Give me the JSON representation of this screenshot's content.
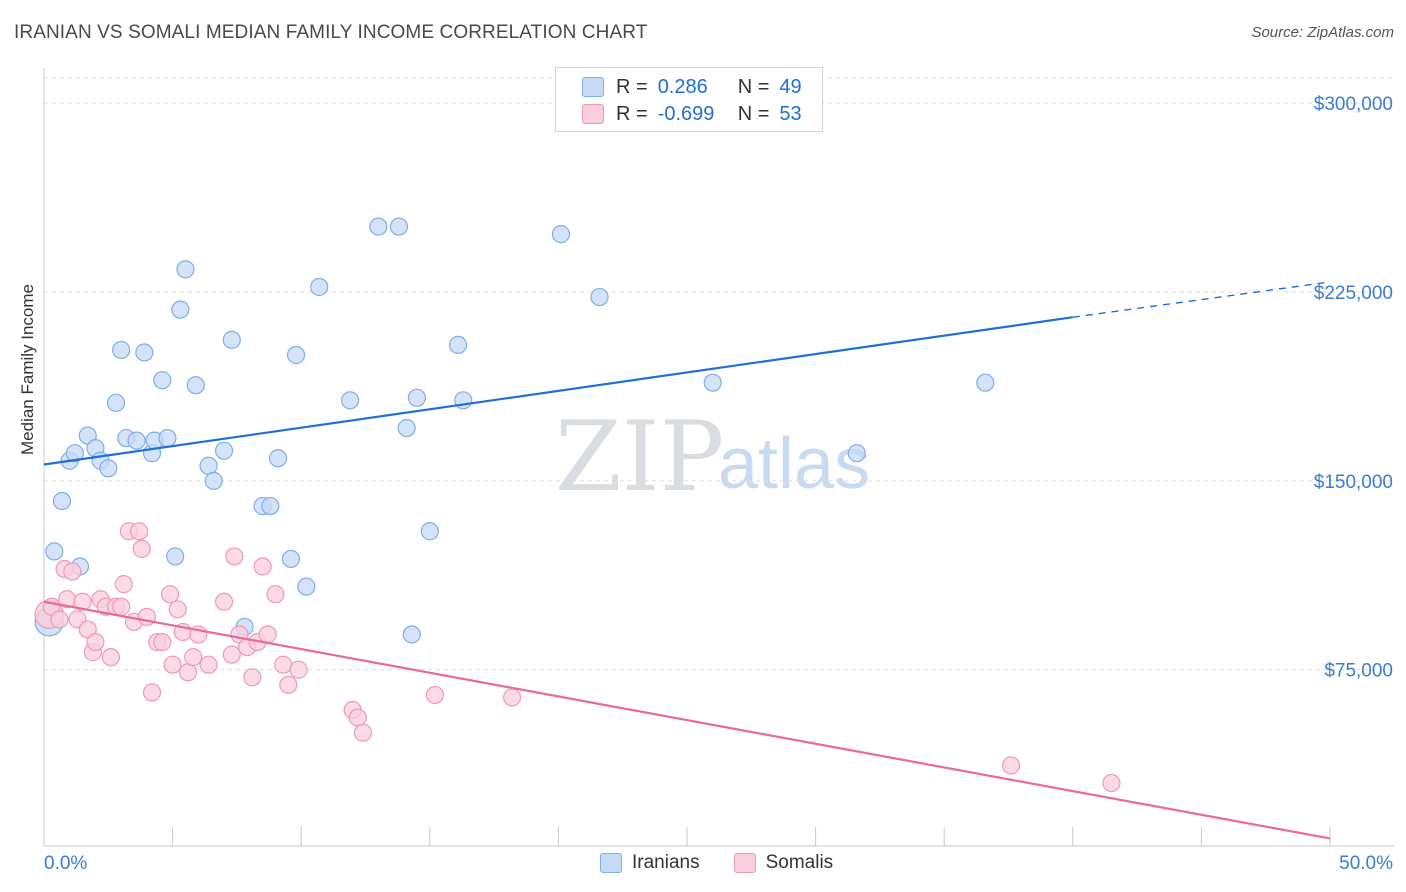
{
  "title": "IRANIAN VS SOMALI MEDIAN FAMILY INCOME CORRELATION CHART",
  "source": "Source: ZipAtlas.com",
  "watermark": {
    "zip": "ZIP",
    "atlas": "atlas"
  },
  "colors": {
    "blue_fill": "#c5daf6",
    "blue_stroke": "#7eaee8",
    "blue_line": "#1f6fd6",
    "pink_fill": "#f9cddc",
    "pink_stroke": "#ee9ab7",
    "pink_line": "#e8699a",
    "axis_text": "#3b7bd0"
  },
  "legend": {
    "rows": [
      {
        "r_label": "R =",
        "r_value": "0.286",
        "n_label": "N =",
        "n_value": "49"
      },
      {
        "r_label": "R =",
        "r_value": "-0.699",
        "n_label": "N =",
        "n_value": "53"
      }
    ]
  },
  "bottom_legend": {
    "iranians": "Iranians",
    "somalis": "Somalis"
  },
  "chart_data": {
    "type": "scatter",
    "ylabel": "Median Family Income",
    "xlabel": "",
    "xlim": [
      0,
      50
    ],
    "ylim": [
      5000,
      310000
    ],
    "x_tick_labels": {
      "min": "0.0%",
      "max": "50.0%"
    },
    "y_ticks": [
      {
        "value": 75000,
        "label": "$75,000"
      },
      {
        "value": 150000,
        "label": "$150,000"
      },
      {
        "value": 225000,
        "label": "$225,000"
      },
      {
        "value": 300000,
        "label": "$300,000"
      }
    ],
    "series": [
      {
        "name": "Iranians",
        "r": 0.286,
        "n": 49,
        "trend": {
          "x0": 0,
          "y0": 156500,
          "x1": 40,
          "y1": 215000,
          "dash_to_x": 50,
          "dash_to_y": 229000
        },
        "points": [
          [
            0.2,
            94000
          ],
          [
            0.4,
            122000
          ],
          [
            0.7,
            142000
          ],
          [
            1.0,
            158000
          ],
          [
            1.2,
            161000
          ],
          [
            1.4,
            116000
          ],
          [
            1.7,
            168000
          ],
          [
            2.0,
            163000
          ],
          [
            2.2,
            158000
          ],
          [
            2.5,
            155000
          ],
          [
            2.8,
            181000
          ],
          [
            3.0,
            202000
          ],
          [
            3.2,
            167000
          ],
          [
            3.6,
            166000
          ],
          [
            3.9,
            201000
          ],
          [
            4.2,
            161000
          ],
          [
            4.3,
            166000
          ],
          [
            4.6,
            190000
          ],
          [
            4.8,
            167000
          ],
          [
            5.1,
            120000
          ],
          [
            5.3,
            218000
          ],
          [
            5.5,
            234000
          ],
          [
            5.9,
            188000
          ],
          [
            6.4,
            156000
          ],
          [
            6.6,
            150000
          ],
          [
            7.0,
            162000
          ],
          [
            7.3,
            206000
          ],
          [
            7.8,
            92000
          ],
          [
            8.5,
            140000
          ],
          [
            8.8,
            140000
          ],
          [
            9.1,
            159000
          ],
          [
            9.6,
            119000
          ],
          [
            9.8,
            200000
          ],
          [
            10.2,
            108000
          ],
          [
            10.7,
            227000
          ],
          [
            11.9,
            182000
          ],
          [
            13.0,
            251000
          ],
          [
            13.8,
            251000
          ],
          [
            14.1,
            171000
          ],
          [
            14.3,
            89000
          ],
          [
            14.5,
            183000
          ],
          [
            15.0,
            130000
          ],
          [
            16.1,
            204000
          ],
          [
            16.3,
            182000
          ],
          [
            20.1,
            248000
          ],
          [
            21.6,
            223000
          ],
          [
            26.0,
            189000
          ],
          [
            31.6,
            161000
          ],
          [
            36.6,
            189000
          ]
        ]
      },
      {
        "name": "Somalis",
        "r": -0.699,
        "n": 53,
        "trend": {
          "x0": 0,
          "y0": 102000,
          "x1": 50,
          "y1": 8000
        },
        "points": [
          [
            0.2,
            97000
          ],
          [
            0.3,
            100000
          ],
          [
            0.6,
            95000
          ],
          [
            0.8,
            115000
          ],
          [
            0.9,
            103000
          ],
          [
            1.1,
            114000
          ],
          [
            1.3,
            95000
          ],
          [
            1.5,
            102000
          ],
          [
            1.7,
            91000
          ],
          [
            1.9,
            82000
          ],
          [
            2.0,
            86000
          ],
          [
            2.2,
            103000
          ],
          [
            2.4,
            100000
          ],
          [
            2.6,
            80000
          ],
          [
            2.8,
            100000
          ],
          [
            3.0,
            100000
          ],
          [
            3.1,
            109000
          ],
          [
            3.3,
            130000
          ],
          [
            3.5,
            94000
          ],
          [
            3.7,
            130000
          ],
          [
            3.8,
            123000
          ],
          [
            4.0,
            96000
          ],
          [
            4.2,
            66000
          ],
          [
            4.4,
            86000
          ],
          [
            4.6,
            86000
          ],
          [
            4.9,
            105000
          ],
          [
            5.0,
            77000
          ],
          [
            5.2,
            99000
          ],
          [
            5.4,
            90000
          ],
          [
            5.6,
            74000
          ],
          [
            5.8,
            80000
          ],
          [
            6.0,
            89000
          ],
          [
            6.4,
            77000
          ],
          [
            7.0,
            102000
          ],
          [
            7.3,
            81000
          ],
          [
            7.4,
            120000
          ],
          [
            7.6,
            89000
          ],
          [
            7.9,
            84000
          ],
          [
            8.1,
            72000
          ],
          [
            8.3,
            86000
          ],
          [
            8.5,
            116000
          ],
          [
            8.7,
            89000
          ],
          [
            9.0,
            105000
          ],
          [
            9.3,
            77000
          ],
          [
            9.5,
            69000
          ],
          [
            9.9,
            75000
          ],
          [
            12.0,
            59000
          ],
          [
            12.2,
            56000
          ],
          [
            12.4,
            50000
          ],
          [
            15.2,
            65000
          ],
          [
            18.2,
            64000
          ],
          [
            37.6,
            37000
          ],
          [
            41.5,
            30000
          ]
        ]
      }
    ]
  }
}
